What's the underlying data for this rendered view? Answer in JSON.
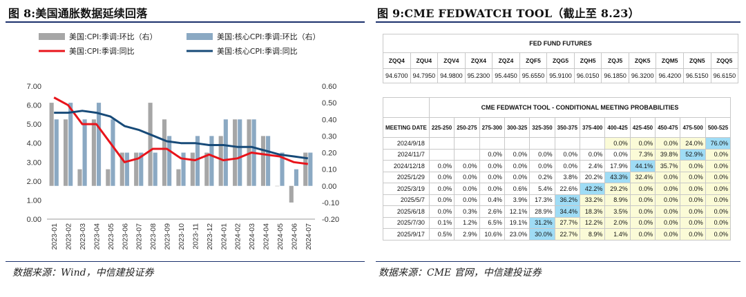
{
  "figure8": {
    "title": "图 8:美国通胀数据延续回落",
    "source": "数据来源：Wind，中信建投证券"
  },
  "figure9": {
    "title": "图 9:CME FEDWATCH TOOL（截止至 8.23）",
    "source": "数据来源：CME 官网，中信建投证券",
    "futures": {
      "header": "FED FUND FUTURES",
      "codes": [
        "ZQQ4",
        "ZQU4",
        "ZQV4",
        "ZQX4",
        "ZQZ4",
        "ZQF5",
        "ZQG5",
        "ZQH5",
        "ZQJ5",
        "ZQK5",
        "ZQM5",
        "ZQN5",
        "ZQQ5"
      ],
      "prices": [
        "94.6700",
        "94.7950",
        "94.9800",
        "95.2300",
        "95.4450",
        "95.6550",
        "95.9100",
        "96.0150",
        "96.1850",
        "96.3200",
        "96.4200",
        "96.5150",
        "96.6150"
      ]
    },
    "probabilities": {
      "header": "CME FEDWATCH TOOL - CONDITIONAL MEETING PROBABILITIES",
      "date_header": "MEETING DATE",
      "ranges": [
        "225-250",
        "250-275",
        "275-300",
        "300-325",
        "325-350",
        "350-375",
        "375-400",
        "400-425",
        "425-450",
        "450-475",
        "475-500",
        "500-525"
      ],
      "rows": [
        {
          "date": "2024/9/18",
          "cells": [
            "",
            "",
            "",
            "",
            "",
            "",
            "",
            "0.0%",
            "0.0%",
            "0.0%",
            "24.0%",
            "76.0%"
          ],
          "hl": [
            "",
            "",
            "",
            "",
            "",
            "",
            "",
            "y",
            "y",
            "y",
            "y",
            "b"
          ]
        },
        {
          "date": "2024/11/7",
          "cells": [
            "",
            "",
            "0.0%",
            "0.0%",
            "0.0%",
            "0.0%",
            "0.0%",
            "0.0%",
            "7.3%",
            "39.8%",
            "52.9%",
            "0.0%"
          ],
          "hl": [
            "",
            "",
            "",
            "",
            "",
            "",
            "",
            "",
            "y",
            "y",
            "b",
            "y"
          ]
        },
        {
          "date": "2024/12/18",
          "cells": [
            "0.0%",
            "0.0%",
            "0.0%",
            "0.0%",
            "0.0%",
            "0.0%",
            "2.4%",
            "17.9%",
            "44.1%",
            "35.7%",
            "0.0%",
            "0.0%"
          ],
          "hl": [
            "",
            "",
            "",
            "",
            "",
            "",
            "",
            "",
            "b",
            "y",
            "y",
            "y"
          ]
        },
        {
          "date": "2025/1/29",
          "cells": [
            "0.0%",
            "0.0%",
            "0.0%",
            "0.0%",
            "0.2%",
            "3.8%",
            "20.2%",
            "43.3%",
            "32.4%",
            "0.0%",
            "0.0%",
            "0.0%"
          ],
          "hl": [
            "",
            "",
            "",
            "",
            "",
            "",
            "",
            "b",
            "y",
            "y",
            "y",
            "y"
          ]
        },
        {
          "date": "2025/3/19",
          "cells": [
            "0.0%",
            "0.0%",
            "0.0%",
            "0.6%",
            "5.4%",
            "22.6%",
            "42.2%",
            "29.2%",
            "0.0%",
            "0.0%",
            "0.0%",
            "0.0%"
          ],
          "hl": [
            "",
            "",
            "",
            "",
            "",
            "",
            "b",
            "y",
            "y",
            "y",
            "y",
            "y"
          ]
        },
        {
          "date": "2025/5/7",
          "cells": [
            "0.0%",
            "0.0%",
            "0.4%",
            "3.9%",
            "17.3%",
            "36.2%",
            "33.2%",
            "8.9%",
            "0.0%",
            "0.0%",
            "0.0%",
            "0.0%"
          ],
          "hl": [
            "",
            "",
            "",
            "",
            "",
            "b",
            "y",
            "y",
            "y",
            "y",
            "y",
            "y"
          ]
        },
        {
          "date": "2025/6/18",
          "cells": [
            "0.0%",
            "0.3%",
            "2.6%",
            "12.1%",
            "28.9%",
            "34.4%",
            "18.3%",
            "3.5%",
            "0.0%",
            "0.0%",
            "0.0%",
            "0.0%"
          ],
          "hl": [
            "",
            "",
            "",
            "",
            "",
            "b",
            "y",
            "y",
            "y",
            "y",
            "y",
            "y"
          ]
        },
        {
          "date": "2025/7/30",
          "cells": [
            "0.1%",
            "1.2%",
            "6.5%",
            "19.1%",
            "31.2%",
            "27.7%",
            "12.2%",
            "2.0%",
            "0.0%",
            "0.0%",
            "0.0%",
            "0.0%"
          ],
          "hl": [
            "",
            "",
            "",
            "",
            "b",
            "y",
            "y",
            "y",
            "y",
            "y",
            "y",
            "y"
          ]
        },
        {
          "date": "2025/9/17",
          "cells": [
            "0.5%",
            "2.9%",
            "10.6%",
            "23.0%",
            "30.0%",
            "22.7%",
            "8.9%",
            "1.4%",
            "0.0%",
            "0.0%",
            "0.0%",
            "0.0%"
          ],
          "hl": [
            "",
            "",
            "",
            "",
            "b",
            "y",
            "y",
            "y",
            "y",
            "y",
            "y",
            "y"
          ]
        }
      ]
    }
  },
  "colors": {
    "cpi_mom_bar": "#a6a6a6",
    "core_mom_bar": "#8ba9c3",
    "cpi_yoy_line": "#e8141b",
    "core_yoy_line": "#174a78",
    "rule": "#1a2f6b",
    "highlight_yellow": "#fbfbd7",
    "highlight_blue": "#9fdcf5"
  },
  "chart_data": {
    "type": "bar",
    "categories": [
      "2023-01",
      "2023-02",
      "2023-03",
      "2023-04",
      "2023-05",
      "2023-06",
      "2023-07",
      "2023-08",
      "2023-09",
      "2023-10",
      "2023-11",
      "2023-12",
      "2024-01",
      "2024-02",
      "2024-03",
      "2024-04",
      "2024-05",
      "2024-06",
      "2024-07"
    ],
    "left_axis": {
      "ylim": [
        0,
        7
      ],
      "ticks": [
        "0.00",
        "1.00",
        "2.00",
        "3.00",
        "4.00",
        "5.00",
        "6.00",
        "7.00"
      ]
    },
    "right_axis": {
      "ylim": [
        -0.2,
        0.6
      ],
      "ticks": [
        "-0.20",
        "-0.10",
        "0.00",
        "0.10",
        "0.20",
        "0.30",
        "0.40",
        "0.50",
        "0.60"
      ]
    },
    "legend": [
      "美国:CPI:季调:环比（右）",
      "美国:核心CPI:季调:环比（右）",
      "美国:CPI:季调:同比",
      "美国:核心CPI:季调:同比"
    ],
    "series": [
      {
        "name": "美国:CPI:季调:环比（右）",
        "kind": "bar",
        "axis": "right",
        "values": [
          0.5,
          0.4,
          0.1,
          0.4,
          0.1,
          0.2,
          0.2,
          0.5,
          0.4,
          0.1,
          0.2,
          0.2,
          0.3,
          0.4,
          0.4,
          0.3,
          0.0,
          -0.1,
          0.2
        ]
      },
      {
        "name": "美国:核心CPI:季调:环比（右）",
        "kind": "bar",
        "axis": "right",
        "values": [
          0.4,
          0.5,
          0.4,
          0.5,
          0.4,
          0.2,
          0.2,
          0.2,
          0.3,
          0.2,
          0.3,
          0.3,
          0.4,
          0.4,
          0.4,
          0.3,
          0.2,
          0.1,
          0.2
        ]
      },
      {
        "name": "美国:CPI:季调:同比",
        "kind": "line",
        "axis": "left",
        "values": [
          6.4,
          6.0,
          5.0,
          5.0,
          4.0,
          3.0,
          3.2,
          3.7,
          3.7,
          3.2,
          3.1,
          3.4,
          3.1,
          3.2,
          3.5,
          3.4,
          3.3,
          3.0,
          2.9
        ]
      },
      {
        "name": "美国:核心CPI:季调:同比",
        "kind": "line",
        "axis": "left",
        "values": [
          5.6,
          5.6,
          5.7,
          5.6,
          5.4,
          4.9,
          4.7,
          4.4,
          4.1,
          4.0,
          4.0,
          3.9,
          3.9,
          3.8,
          3.8,
          3.6,
          3.4,
          3.3,
          3.2
        ]
      }
    ]
  }
}
